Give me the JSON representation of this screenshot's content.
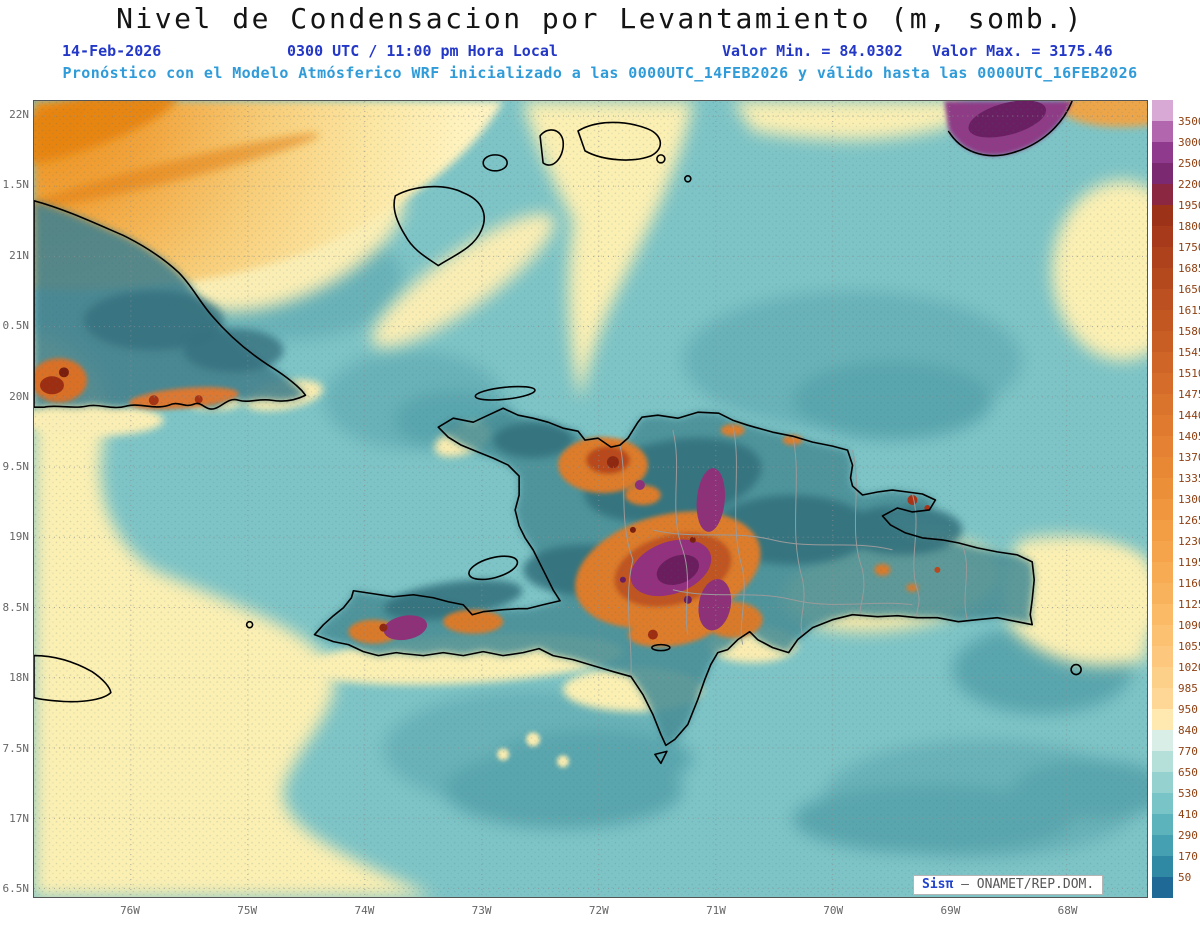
{
  "title": "Nivel de Condensacion por Levantamiento (m, somb.)",
  "info": {
    "date": "14-Feb-2026",
    "time": "0300 UTC / 11:00 pm Hora Local",
    "min_label": "Valor Min. = 84.0302",
    "max_label": "Valor Max. = 3175.46",
    "model_line": "Pronóstico con el Modelo Atmósferico WRF inicializado a las 0000UTC_14FEB2026 y válido hasta las  0000UTC_16FEB2026"
  },
  "axes": {
    "lat_ticks": [
      "22N",
      "1.5N",
      "21N",
      "0.5N",
      "20N",
      "9.5N",
      "19N",
      "8.5N",
      "18N",
      "7.5N",
      "17N",
      "6.5N"
    ],
    "lon_ticks": [
      "76W",
      "75W",
      "74W",
      "73W",
      "72W",
      "71W",
      "70W",
      "69W",
      "68W"
    ]
  },
  "colorbar": {
    "values": [
      "3500",
      "3000",
      "2500",
      "2200",
      "1950",
      "1800",
      "1750",
      "1685",
      "1650",
      "1615",
      "1580",
      "1545",
      "1510",
      "1475",
      "1440",
      "1405",
      "1370",
      "1335",
      "1300",
      "1265",
      "1230",
      "1195",
      "1160",
      "1125",
      "1090",
      "1055",
      "1020",
      "985",
      "950",
      "840",
      "770",
      "650",
      "530",
      "410",
      "290",
      "170",
      "50"
    ],
    "colors": [
      "#d9a9d6",
      "#b266ae",
      "#8f3a8c",
      "#7b2a72",
      "#8c2742",
      "#9c3318",
      "#a63a1a",
      "#ae421c",
      "#b5491e",
      "#bc5020",
      "#c35722",
      "#c95e24",
      "#cf6526",
      "#d56c29",
      "#da732c",
      "#df7a2f",
      "#e48132",
      "#e88835",
      "#ec8f39",
      "#f0963e",
      "#f39d44",
      "#f5a44b",
      "#f7ab53",
      "#f9b25c",
      "#fbba66",
      "#fcc171",
      "#fdc87d",
      "#fdd089",
      "#fed796",
      "#ffe9b0",
      "#d8eee7",
      "#b5e0da",
      "#95d2cf",
      "#79c4c6",
      "#5db3bc",
      "#45a0b2",
      "#2f88a4",
      "#1e6996"
    ]
  },
  "watermark": {
    "brand": "Sisπ",
    "org": "– ONAMET/REP.DOM."
  }
}
